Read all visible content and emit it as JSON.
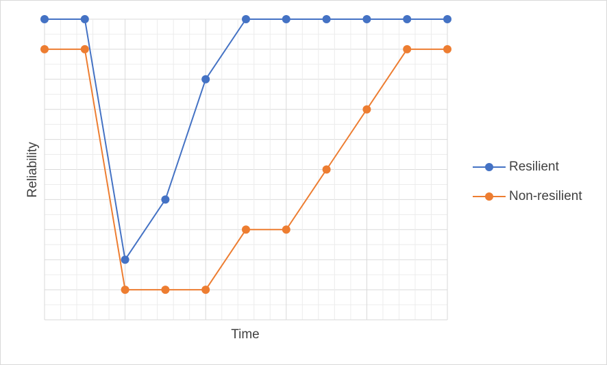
{
  "chart_data": {
    "type": "line",
    "x_label": "Time",
    "y_label": "Reliability",
    "categories": [
      null,
      null,
      null,
      null,
      null,
      null,
      null,
      null,
      null,
      null,
      null
    ],
    "series": [
      {
        "name": "Resilient",
        "color": "#4472c4",
        "values": [
          10,
          10,
          2,
          4,
          8,
          10,
          10,
          10,
          10,
          10,
          10
        ]
      },
      {
        "name": "Non-resilient",
        "color": "#ed7d31",
        "values": [
          9,
          9,
          1,
          1,
          1,
          3,
          3,
          5,
          7,
          9,
          9
        ]
      }
    ],
    "ylim": [
      0,
      10
    ],
    "grid": true,
    "legend": "right"
  }
}
